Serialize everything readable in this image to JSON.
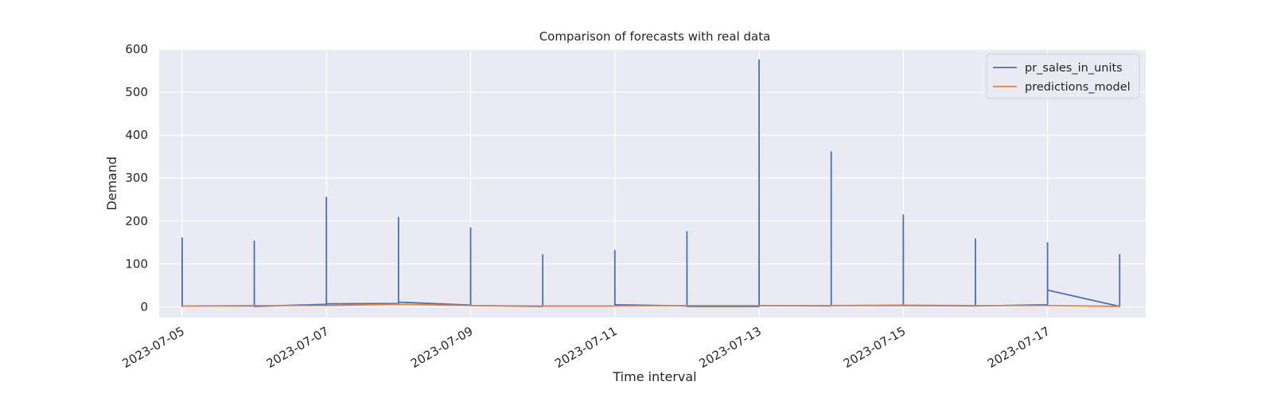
{
  "chart_data": {
    "type": "line",
    "title": "Comparison of forecasts with real data",
    "xlabel": "Time interval",
    "ylabel": "Demand",
    "ylim": [
      -25,
      600
    ],
    "xlim": [
      "2023-07-04T16:20",
      "2023-07-18T08:40"
    ],
    "yticks": [
      0,
      100,
      200,
      300,
      400,
      500,
      600
    ],
    "xticks": [
      "2023-07-05",
      "2023-07-07",
      "2023-07-09",
      "2023-07-11",
      "2023-07-13",
      "2023-07-15",
      "2023-07-17"
    ],
    "grid": true,
    "legend_position": "top-right",
    "series": [
      {
        "name": "pr_sales_in_units",
        "color": "#4c72b0",
        "points": [
          [
            "2023-07-05T00:00",
            0
          ],
          [
            "2023-07-05T00:00",
            160
          ],
          [
            "2023-07-05T00:01",
            2
          ],
          [
            "2023-07-06T00:00",
            2
          ],
          [
            "2023-07-06T00:00",
            153
          ],
          [
            "2023-07-06T00:01",
            1
          ],
          [
            "2023-07-07T00:00",
            6
          ],
          [
            "2023-07-07T00:00",
            255
          ],
          [
            "2023-07-07T00:01",
            7
          ],
          [
            "2023-07-08T00:00",
            8
          ],
          [
            "2023-07-08T00:00",
            208
          ],
          [
            "2023-07-08T00:01",
            11
          ],
          [
            "2023-07-09T00:00",
            4
          ],
          [
            "2023-07-09T00:00",
            184
          ],
          [
            "2023-07-09T00:01",
            3
          ],
          [
            "2023-07-10T00:00",
            1
          ],
          [
            "2023-07-10T00:00",
            121
          ],
          [
            "2023-07-10T00:01",
            2
          ],
          [
            "2023-07-11T00:00",
            2
          ],
          [
            "2023-07-11T00:00",
            131
          ],
          [
            "2023-07-11T00:01",
            5
          ],
          [
            "2023-07-12T00:00",
            2
          ],
          [
            "2023-07-12T00:00",
            175
          ],
          [
            "2023-07-12T00:01",
            1
          ],
          [
            "2023-07-13T00:00",
            1
          ],
          [
            "2023-07-13T00:00",
            575
          ],
          [
            "2023-07-13T00:01",
            3
          ],
          [
            "2023-07-14T00:00",
            2
          ],
          [
            "2023-07-14T00:00",
            361
          ],
          [
            "2023-07-14T00:01",
            3
          ],
          [
            "2023-07-15T00:00",
            3
          ],
          [
            "2023-07-15T00:00",
            214
          ],
          [
            "2023-07-15T00:01",
            3
          ],
          [
            "2023-07-16T00:00",
            2
          ],
          [
            "2023-07-16T00:00",
            158
          ],
          [
            "2023-07-16T00:01",
            2
          ],
          [
            "2023-07-17T00:00",
            5
          ],
          [
            "2023-07-17T00:00",
            149
          ],
          [
            "2023-07-17T00:01",
            39
          ],
          [
            "2023-07-18T00:00",
            1
          ],
          [
            "2023-07-18T00:00",
            123
          ]
        ]
      },
      {
        "name": "predictions_model",
        "color": "#dd8452",
        "points": [
          [
            "2023-07-05T00:00",
            2
          ],
          [
            "2023-07-06T00:00",
            3
          ],
          [
            "2023-07-07T00:00",
            3
          ],
          [
            "2023-07-08T00:00",
            6
          ],
          [
            "2023-07-09T00:00",
            3
          ],
          [
            "2023-07-10T00:00",
            2
          ],
          [
            "2023-07-11T00:00",
            2
          ],
          [
            "2023-07-12T00:00",
            3
          ],
          [
            "2023-07-13T00:00",
            3
          ],
          [
            "2023-07-14T00:00",
            3
          ],
          [
            "2023-07-15T00:00",
            4
          ],
          [
            "2023-07-16T00:00",
            3
          ],
          [
            "2023-07-17T00:00",
            3
          ],
          [
            "2023-07-18T00:00",
            1
          ]
        ]
      }
    ]
  }
}
